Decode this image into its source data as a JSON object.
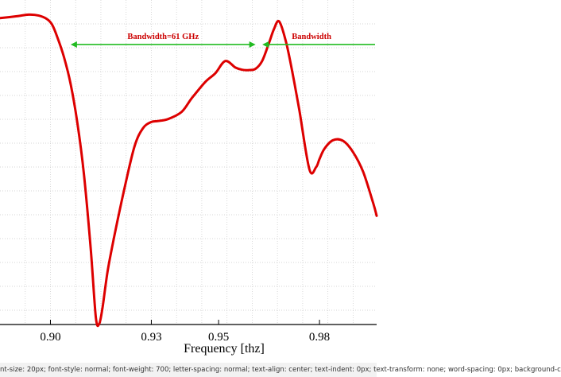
{
  "chart_data": {
    "type": "line",
    "xlabel": "Frequency [thz]",
    "ylabel": "",
    "title": "",
    "xlim": [
      0.885,
      0.997
    ],
    "ylim": [
      0,
      1
    ],
    "x_ticks": [
      0.9,
      0.93,
      0.95,
      0.98
    ],
    "x_tick_labels": [
      "0.90",
      "0.93",
      "0.95",
      "0.98"
    ],
    "grid": true,
    "series": [
      {
        "color": "#dd0000",
        "x": [
          0.885,
          0.89,
          0.8935,
          0.8965,
          0.899,
          0.9005,
          0.902,
          0.904,
          0.906,
          0.908,
          0.91,
          0.912,
          0.9135,
          0.9145,
          0.9155,
          0.917,
          0.919,
          0.922,
          0.925,
          0.9275,
          0.93,
          0.932,
          0.935,
          0.939,
          0.942,
          0.946,
          0.949,
          0.952,
          0.955,
          0.957,
          0.959,
          0.961,
          0.963,
          0.965,
          0.9665,
          0.968,
          0.97,
          0.972,
          0.974,
          0.977,
          0.979,
          0.98,
          0.9815,
          0.984,
          0.987,
          0.99,
          0.993,
          0.996,
          0.997
        ],
        "y": [
          0.944,
          0.95,
          0.955,
          0.952,
          0.941,
          0.924,
          0.887,
          0.825,
          0.741,
          0.622,
          0.459,
          0.23,
          0.022,
          0.002,
          0.053,
          0.164,
          0.273,
          0.419,
          0.549,
          0.605,
          0.624,
          0.627,
          0.633,
          0.655,
          0.697,
          0.747,
          0.774,
          0.812,
          0.792,
          0.785,
          0.784,
          0.788,
          0.813,
          0.868,
          0.911,
          0.934,
          0.873,
          0.774,
          0.661,
          0.478,
          0.485,
          0.51,
          0.542,
          0.568,
          0.566,
          0.531,
          0.47,
          0.373,
          0.335
        ]
      }
    ],
    "annotations": [
      {
        "text": "Bandwidth=61 GHz",
        "color": "#cc0000",
        "arrow_x": [
          0.906,
          0.961
        ],
        "y": 0.88
      },
      {
        "text": "Bandwidth",
        "color": "#cc0000",
        "arrow_x": [
          0.963,
          0.997
        ],
        "y": 0.88
      }
    ]
  },
  "footer_text": "nt-size: 20px; font-style: normal; font-weight: 700; letter-spacing: normal; text-align: center; text-indent: 0px; text-transform: none; word-spacing: 0px; background-c"
}
